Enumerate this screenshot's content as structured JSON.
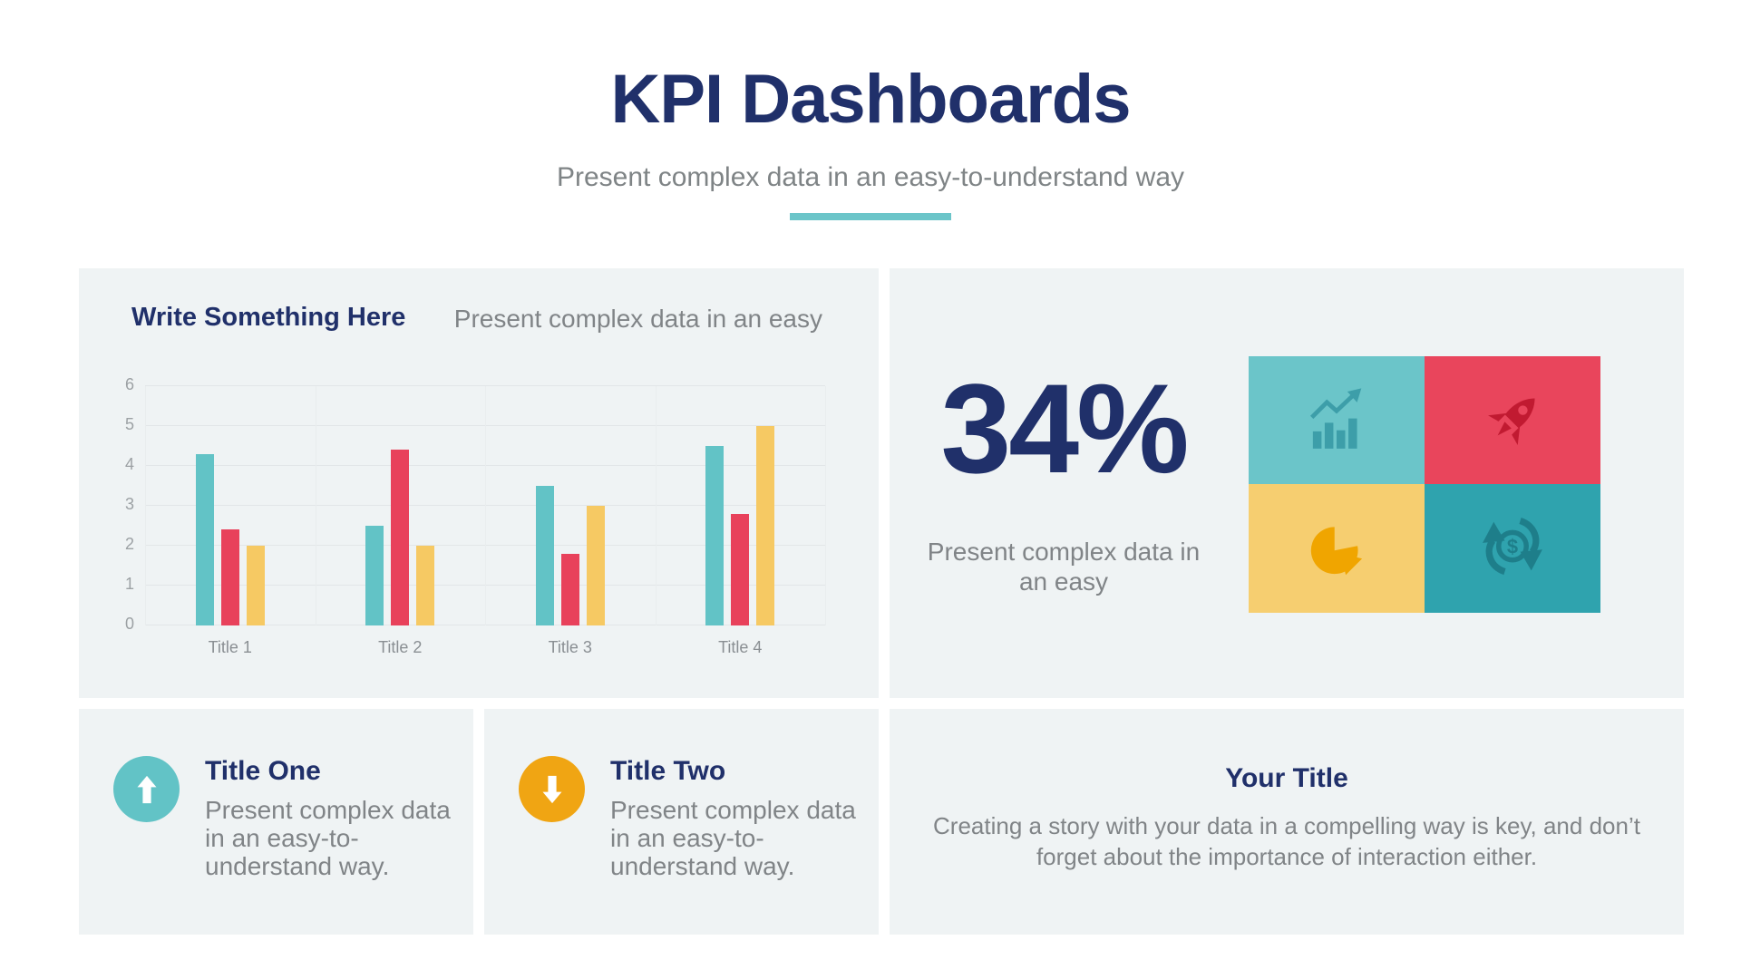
{
  "page": {
    "title": "KPI Dashboards",
    "subtitle": "Present complex data in an easy-to-understand way",
    "divider_color": "#6BC5C9"
  },
  "colors": {
    "navy": "#20306A",
    "gray_text": "#808487",
    "card_background": "#EFF3F4",
    "teal": "#62C3C6",
    "red": "#E8415B",
    "yellow": "#F6C963",
    "orange": "#F0A513",
    "dark_teal": "#2FA3AE"
  },
  "chart_card": {
    "heading": "Write Something Here",
    "subheading": "Present complex data in an easy"
  },
  "chart_data": {
    "type": "bar",
    "title": "Write Something Here",
    "categories": [
      "Title 1",
      "Title 2",
      "Title 3",
      "Title 4"
    ],
    "series": [
      {
        "name": "teal",
        "color": "#62C3C6",
        "values": [
          4.3,
          2.5,
          3.5,
          4.5
        ]
      },
      {
        "name": "red",
        "color": "#E8415B",
        "values": [
          2.4,
          4.4,
          1.8,
          2.8
        ]
      },
      {
        "name": "yellow",
        "color": "#F6C963",
        "values": [
          2.0,
          2.0,
          3.0,
          5.0
        ]
      }
    ],
    "xlabel": "",
    "ylabel": "",
    "ylim": [
      0,
      6
    ],
    "yticks": [
      0,
      1,
      2,
      3,
      4,
      5,
      6
    ],
    "grid": true,
    "legend": false
  },
  "stat_card": {
    "value": "34%",
    "caption": "Present complex data in an easy",
    "tiles": [
      {
        "icon": "growth-chart-icon",
        "bg": "#6BC5C9",
        "icon_color": "#3D9EA9"
      },
      {
        "icon": "rocket-icon",
        "bg": "#E9455C",
        "icon_color": "#C11A31"
      },
      {
        "icon": "pie-chart-icon",
        "bg": "#F6CE70",
        "icon_color": "#F0A500"
      },
      {
        "icon": "money-exchange-icon",
        "bg": "#2FA3AE",
        "icon_color": "#1E7E8A"
      }
    ]
  },
  "info_cards": [
    {
      "title": "Title One",
      "text": "Present complex data in an easy-to-understand way.",
      "icon": "arrow-up-icon",
      "icon_bg": "#62C3C6"
    },
    {
      "title": "Title Two",
      "text": "Present complex data in an easy-to-understand way.",
      "icon": "arrow-down-icon",
      "icon_bg": "#F0A513"
    }
  ],
  "summary_card": {
    "title": "Your Title",
    "text": "Creating a story with your data in a compelling way is key, and don’t forget about the importance of interaction either."
  }
}
